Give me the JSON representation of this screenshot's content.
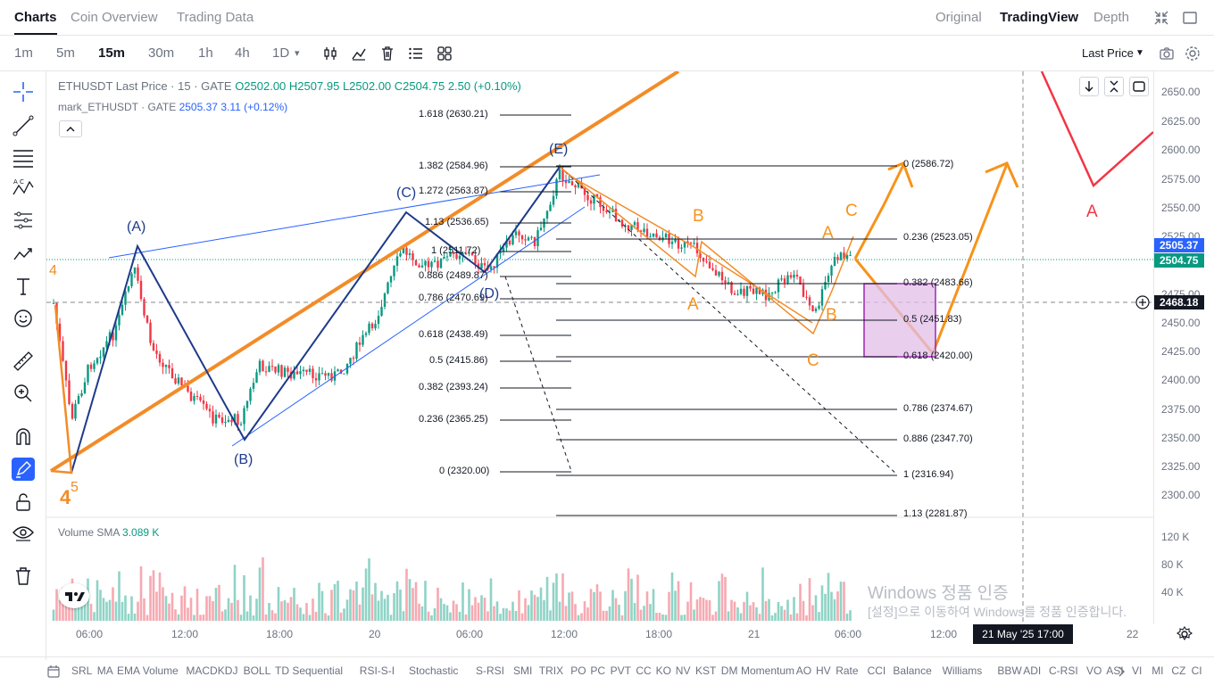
{
  "colors": {
    "accent": "#2962ff",
    "up": "#089981",
    "down": "#f23645",
    "orange": "#f7931a",
    "wave_blue": "#1e3a8a"
  },
  "tabs": [
    {
      "label": "Charts"
    },
    {
      "label": "Coin Overview"
    },
    {
      "label": "Trading Data"
    }
  ],
  "views": [
    {
      "label": "Original"
    },
    {
      "label": "TradingView"
    },
    {
      "label": "Depth"
    }
  ],
  "timeframes": [
    {
      "label": "1m"
    },
    {
      "label": "5m"
    },
    {
      "label": "15m"
    },
    {
      "label": "30m"
    },
    {
      "label": "1h"
    },
    {
      "label": "4h"
    },
    {
      "label": "1D"
    }
  ],
  "price_mode": "Last Price",
  "legend": {
    "symbol": "ETHUSDT Last Price · 15 · GATE",
    "o": "O2502.00",
    "h": "H2507.95",
    "l": "L2502.00",
    "c": "C2504.75",
    "change": "2.50 (+0.10%)",
    "mark_label": "mark_ETHUSDT · GATE",
    "mark_value": "2505.37",
    "mark_change": "3.11 (+0.12%)"
  },
  "volume": {
    "label": "Volume SMA",
    "value": "3.089 K"
  },
  "price_axis": [
    "2650.00",
    "2625.00",
    "2600.00",
    "2575.00",
    "2550.00",
    "2525.00",
    "2475.00",
    "2450.00",
    "2425.00",
    "2400.00",
    "2375.00",
    "2350.00",
    "2325.00",
    "2300.00"
  ],
  "price_badges": {
    "mark": "2505.37",
    "last": "2504.75",
    "crosshair": "2468.18"
  },
  "volume_axis": [
    "120 K",
    "80 K",
    "40 K"
  ],
  "time_axis": [
    "06:00",
    "12:00",
    "18:00",
    "20",
    "06:00",
    "12:00",
    "18:00",
    "21",
    "06:00",
    "12:00",
    "22"
  ],
  "time_badge": "21 May '25   17:00",
  "fib_left": [
    "1.618 (2630.21)",
    "1.382 (2584.96)",
    "1.272 (2563.87)",
    "1.13 (2536.65)",
    "1 (2511.72)",
    "0.886 (2489.87)",
    "0.786 (2470.69)",
    "0.618 (2438.49)",
    "0.5 (2415.86)",
    "0.382 (2393.24)",
    "0.236 (2365.25)",
    "0 (2320.00)"
  ],
  "fib_right": [
    "0 (2586.72)",
    "0.236 (2523.05)",
    "0.382 (2483.66)",
    "0.5 (2451.83)",
    "0.618 (2420.00)",
    "0.786 (2374.67)",
    "0.886 (2347.70)",
    "1 (2316.94)",
    "1.13 (2281.87)"
  ],
  "wave_labels": {
    "A": "(A)",
    "B": "(B)",
    "C": "(C)",
    "D": "(D)",
    "E": "(E)",
    "n4": "4",
    "n5": "5",
    "n4b": "4",
    "oB": "B",
    "oA": "A",
    "oA2": "A",
    "oC": "C",
    "oB2": "B",
    "oC2": "C",
    "rA": "A"
  },
  "indicators": [
    "SRL",
    "MA",
    "EMA",
    "Volume",
    "MACD",
    "KDJ",
    "BOLL",
    "TD Sequential",
    "RSI-S-I",
    "Stochastic",
    "S-RSI",
    "SMI",
    "TRIX",
    "PO",
    "PC",
    "PVT",
    "CC",
    "KO",
    "NV",
    "KST",
    "DM",
    "Momentum",
    "AO",
    "HV",
    "Rate",
    "CCI",
    "Balance",
    "Williams",
    "BBW",
    "ADI",
    "C-RSI",
    "VO",
    "ASI",
    "VI",
    "MI",
    "CZ",
    "CI"
  ],
  "watermark": {
    "line1": "Windows 정품 인증",
    "line2": "[설정]으로 이동하여 Windows를 정품 인증합니다."
  }
}
